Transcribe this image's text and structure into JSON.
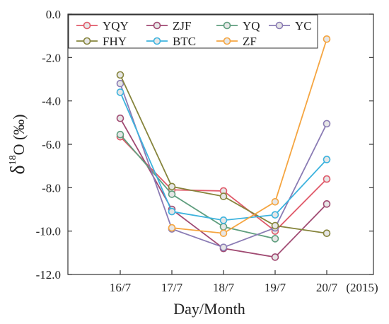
{
  "chart_data": {
    "type": "line",
    "categories": [
      "16/7",
      "17/7",
      "18/7",
      "19/7",
      "20/7"
    ],
    "x_suffix": "(2015)",
    "xlabel": "Day/Month",
    "ylabel": {
      "base": "δ",
      "sup": "18",
      "rest": "O (‰)"
    },
    "ylim": [
      -12.0,
      0.0
    ],
    "yticks": [
      -12.0,
      -10.0,
      -8.0,
      -6.0,
      -4.0,
      -2.0,
      0.0
    ],
    "ytick_labels": [
      "-12.0",
      "-10.0",
      "-8.0",
      "-6.0",
      "-4.0",
      "-2.0",
      "0.0"
    ],
    "grid": false,
    "legend_position": "top",
    "series": [
      {
        "name": "YQY",
        "color": "#e05a6a",
        "values": [
          -5.65,
          -8.1,
          -8.15,
          -10.0,
          -7.6
        ]
      },
      {
        "name": "ZJF",
        "color": "#a04a72",
        "values": [
          -4.8,
          -9.0,
          -10.8,
          -11.2,
          -8.75
        ]
      },
      {
        "name": "YQ",
        "color": "#5f9e7e",
        "values": [
          -5.55,
          -8.3,
          -9.8,
          -10.35,
          null
        ]
      },
      {
        "name": "YC",
        "color": "#8a7bb4",
        "values": [
          -3.2,
          -9.9,
          -10.75,
          -9.85,
          -5.05
        ]
      },
      {
        "name": "FHY",
        "color": "#86843c",
        "values": [
          -2.8,
          -7.95,
          -8.4,
          -9.75,
          -10.1
        ]
      },
      {
        "name": "BTC",
        "color": "#3db3de",
        "values": [
          -3.6,
          -9.1,
          -9.5,
          -9.25,
          -6.7
        ]
      },
      {
        "name": "ZF",
        "color": "#f5a540",
        "values": [
          null,
          -9.85,
          -10.1,
          -8.65,
          -1.15
        ]
      }
    ]
  }
}
